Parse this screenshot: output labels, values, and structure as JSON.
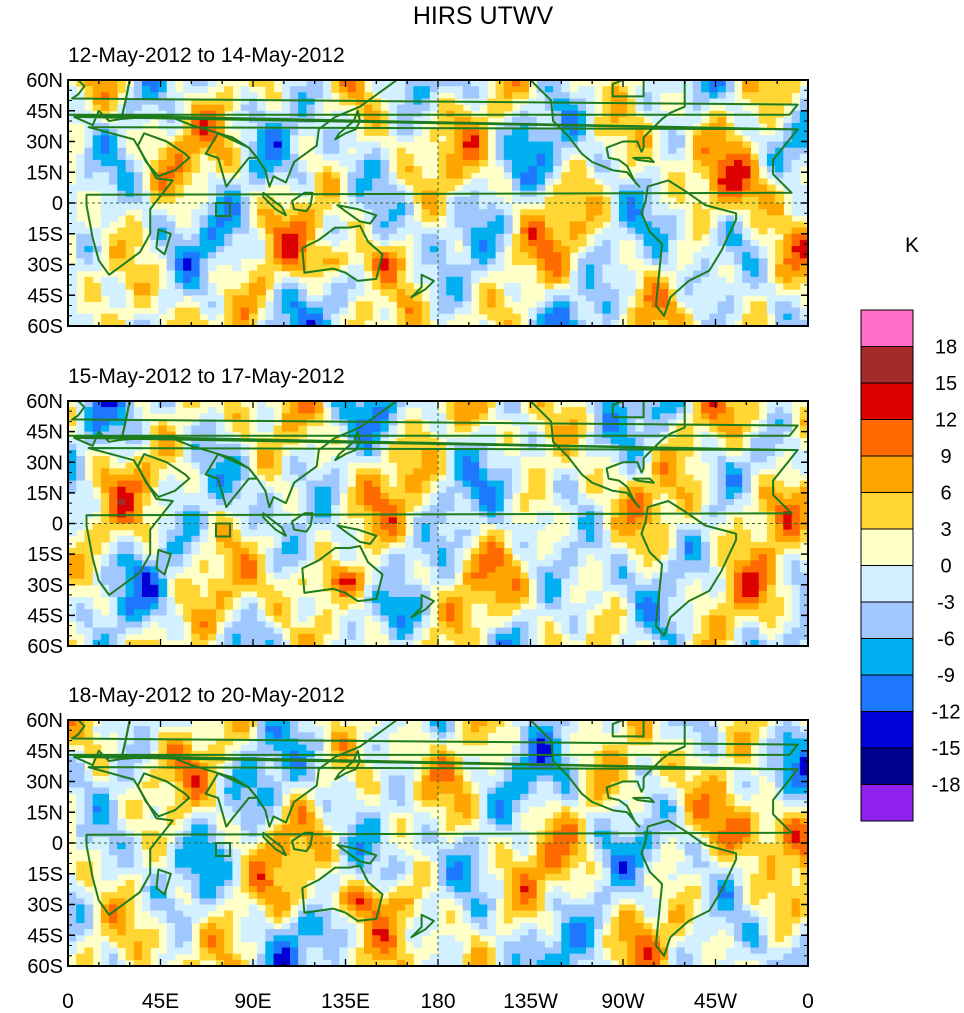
{
  "chart_data": {
    "type": "heatmap",
    "title": "HIRS UTWV",
    "units": "K",
    "panels": [
      {
        "subtitle": "12-May-2012 to 14-May-2012"
      },
      {
        "subtitle": "15-May-2012 to 17-May-2012"
      },
      {
        "subtitle": "18-May-2012 to 20-May-2012"
      }
    ],
    "ylabels": [
      "60N",
      "45N",
      "30N",
      "15N",
      "0",
      "15S",
      "30S",
      "45S",
      "60S"
    ],
    "xlabels": [
      "0",
      "45E",
      "90E",
      "135E",
      "180",
      "135W",
      "90W",
      "45W",
      "0"
    ],
    "xlim": [
      0,
      360
    ],
    "ylim": [
      -60,
      60
    ],
    "colorbar": {
      "levels": [
        "18",
        "15",
        "12",
        "9",
        "6",
        "3",
        "0",
        "-3",
        "-6",
        "-9",
        "-12",
        "-15",
        "-18"
      ],
      "colors": [
        "#ff6ec7",
        "#a52a2a",
        "#dd0000",
        "#ff6a00",
        "#ffa500",
        "#ffd633",
        "#ffffc8",
        "#d2f0ff",
        "#a0c8ff",
        "#00b0f0",
        "#1e78ff",
        "#0000d8",
        "#000090",
        "#9020f0"
      ]
    }
  }
}
